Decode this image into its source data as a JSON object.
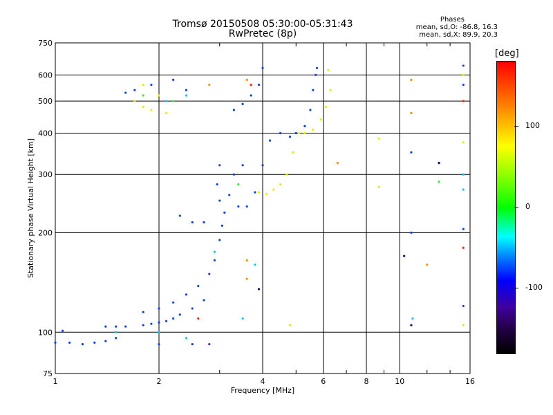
{
  "header": {
    "title_line1": "Tromsø 20150508 05:30:00-05:31:43",
    "title_line2": "RwPretec (8p)",
    "phases_title": "Phases",
    "phases_o": "mean, sd,O: -86.8, 16.3",
    "phases_x": "mean, sd,X: 89.9, 20.3"
  },
  "colorbar": {
    "label": "[deg]",
    "ticks": [
      "100",
      "0",
      "-100"
    ],
    "tick_values": [
      100,
      0,
      -100
    ],
    "range": [
      -180,
      180
    ]
  },
  "chart_data": {
    "type": "scatter",
    "title": "Tromsø 20150508 05:30:00-05:31:43",
    "subtitle": "RwPretec (8p)",
    "xlabel": "Frequency [MHz]",
    "ylabel": "Stationary phase Virtual Height [km]",
    "xscale": "log",
    "yscale": "log",
    "xlim": [
      1,
      16
    ],
    "ylim": [
      75,
      750
    ],
    "xticks": [
      1,
      2,
      4,
      6,
      8,
      10,
      16
    ],
    "xtick_labels": [
      "1",
      "2",
      "4",
      "6",
      "8",
      "10",
      "16"
    ],
    "yticks": [
      75,
      100,
      200,
      300,
      400,
      500,
      600,
      750
    ],
    "ytick_labels": [
      "75",
      "100",
      "200",
      "300",
      "400",
      "500",
      "600",
      "750"
    ],
    "grid": true,
    "series": [
      {
        "color": "#1040e0",
        "points": [
          [
            1.0,
            93
          ],
          [
            1.1,
            93
          ],
          [
            1.2,
            92
          ],
          [
            1.3,
            93
          ],
          [
            1.4,
            94
          ],
          [
            1.5,
            96
          ],
          [
            1.05,
            101
          ],
          [
            1.4,
            104
          ],
          [
            1.5,
            104
          ],
          [
            1.6,
            104
          ],
          [
            1.8,
            105
          ],
          [
            1.9,
            106
          ],
          [
            2.0,
            107
          ],
          [
            2.1,
            108
          ],
          [
            2.2,
            110
          ],
          [
            2.3,
            113
          ],
          [
            2.5,
            118
          ],
          [
            2.7,
            125
          ],
          [
            1.8,
            115
          ],
          [
            2.0,
            118
          ],
          [
            2.2,
            123
          ],
          [
            2.4,
            130
          ],
          [
            2.6,
            138
          ],
          [
            2.8,
            150
          ],
          [
            2.9,
            165
          ],
          [
            3.0,
            190
          ],
          [
            3.05,
            210
          ],
          [
            3.1,
            230
          ],
          [
            3.0,
            250
          ],
          [
            2.95,
            280
          ],
          [
            3.0,
            320
          ],
          [
            3.2,
            260
          ],
          [
            3.4,
            240
          ],
          [
            3.6,
            240
          ],
          [
            3.8,
            265
          ],
          [
            4.0,
            320
          ],
          [
            4.2,
            380
          ],
          [
            4.5,
            400
          ],
          [
            4.8,
            390
          ],
          [
            5.0,
            400
          ],
          [
            5.3,
            420
          ],
          [
            5.5,
            470
          ],
          [
            5.6,
            540
          ],
          [
            5.7,
            600
          ],
          [
            5.75,
            630
          ],
          [
            3.3,
            300
          ],
          [
            3.5,
            320
          ],
          [
            3.3,
            470
          ],
          [
            3.5,
            490
          ],
          [
            3.7,
            520
          ],
          [
            3.9,
            560
          ],
          [
            4.0,
            630
          ],
          [
            2.3,
            225
          ],
          [
            2.5,
            215
          ],
          [
            2.7,
            215
          ],
          [
            1.6,
            530
          ],
          [
            1.7,
            540
          ],
          [
            1.9,
            560
          ],
          [
            2.2,
            580
          ],
          [
            2.4,
            540
          ],
          [
            2.0,
            92
          ],
          [
            2.5,
            92
          ],
          [
            2.8,
            92
          ],
          [
            10.8,
            200
          ],
          [
            10.8,
            350
          ],
          [
            13,
            325
          ],
          [
            15.3,
            205
          ],
          [
            15.3,
            560
          ],
          [
            15.3,
            640
          ],
          [
            15.3,
            120
          ]
        ]
      },
      {
        "color": "#00c8ff",
        "points": [
          [
            1.5,
            100
          ],
          [
            2.0,
            100
          ],
          [
            2.4,
            96
          ],
          [
            3.5,
            110
          ],
          [
            3.8,
            160
          ],
          [
            2.9,
            175
          ],
          [
            2.1,
            500
          ],
          [
            2.4,
            520
          ],
          [
            15.3,
            300
          ],
          [
            15.3,
            270
          ],
          [
            10.9,
            110
          ]
        ]
      },
      {
        "color": "#e6ee00",
        "points": [
          [
            3.9,
            265
          ],
          [
            4.1,
            262
          ],
          [
            4.3,
            270
          ],
          [
            4.5,
            280
          ],
          [
            4.7,
            300
          ],
          [
            4.9,
            350
          ],
          [
            5.1,
            400
          ],
          [
            5.3,
            400
          ],
          [
            5.6,
            410
          ],
          [
            5.9,
            440
          ],
          [
            6.1,
            480
          ],
          [
            6.3,
            540
          ],
          [
            6.2,
            620
          ],
          [
            1.7,
            500
          ],
          [
            1.8,
            480
          ],
          [
            1.9,
            470
          ],
          [
            2.1,
            460
          ],
          [
            2.0,
            520
          ],
          [
            1.8,
            560
          ],
          [
            8.7,
            385
          ],
          [
            8.7,
            275
          ],
          [
            4.8,
            105
          ],
          [
            15.3,
            375
          ],
          [
            15.3,
            600
          ],
          [
            15.3,
            105
          ]
        ]
      },
      {
        "color": "#ff8c00",
        "points": [
          [
            3.6,
            580
          ],
          [
            3.6,
            165
          ],
          [
            3.6,
            145
          ],
          [
            2.8,
            560
          ],
          [
            10.8,
            580
          ],
          [
            10.8,
            460
          ],
          [
            12,
            160
          ],
          [
            6.6,
            325
          ]
        ]
      },
      {
        "color": "#ff2000",
        "points": [
          [
            3.7,
            560
          ],
          [
            2.6,
            110
          ],
          [
            15.3,
            180
          ],
          [
            15.3,
            500
          ]
        ]
      },
      {
        "color": "#40e040",
        "points": [
          [
            1.8,
            520
          ],
          [
            2.2,
            500
          ],
          [
            13,
            285
          ],
          [
            3.4,
            280
          ]
        ]
      },
      {
        "color": "#300070",
        "points": [
          [
            3.9,
            135
          ],
          [
            10.3,
            170
          ],
          [
            10.8,
            105
          ],
          [
            13,
            325
          ]
        ]
      }
    ]
  }
}
